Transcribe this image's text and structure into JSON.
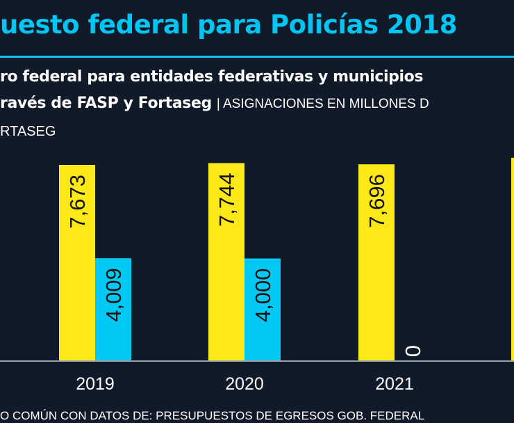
{
  "header": {
    "title": "uesto federal para Policías 2018",
    "subtitle_line1": "ro federal para entidades federativas y municipios",
    "subtitle_line2_bold": "ravés de FASP y Fortaseg",
    "subtitle_line2_light": "| ASIGNACIONES EN MILLONES D",
    "legend_fragment": "RTASEG"
  },
  "footer": {
    "source": "O COMÚN CON DATOS DE: PRESUPUESTOS DE EGRESOS GOB. FEDERAL"
  },
  "colors": {
    "background": "#111a28",
    "accent": "#00c4f2",
    "fasp": "#ffe817",
    "fortaseg": "#00c8f5"
  },
  "chart_data": {
    "type": "bar",
    "categories": [
      "2019",
      "2020",
      "2021",
      ""
    ],
    "series": [
      {
        "values": [
          7673,
          7744,
          7696,
          7950
        ],
        "labels": [
          "7,673",
          "7,744",
          "7,696",
          ""
        ],
        "color": "#ffe817"
      },
      {
        "values": [
          4009,
          4000,
          0,
          null
        ],
        "labels": [
          "4,009",
          "4,000",
          "0",
          ""
        ],
        "color": "#00c8f5"
      }
    ],
    "ylim": [
      0,
      8000
    ],
    "grid": false
  }
}
